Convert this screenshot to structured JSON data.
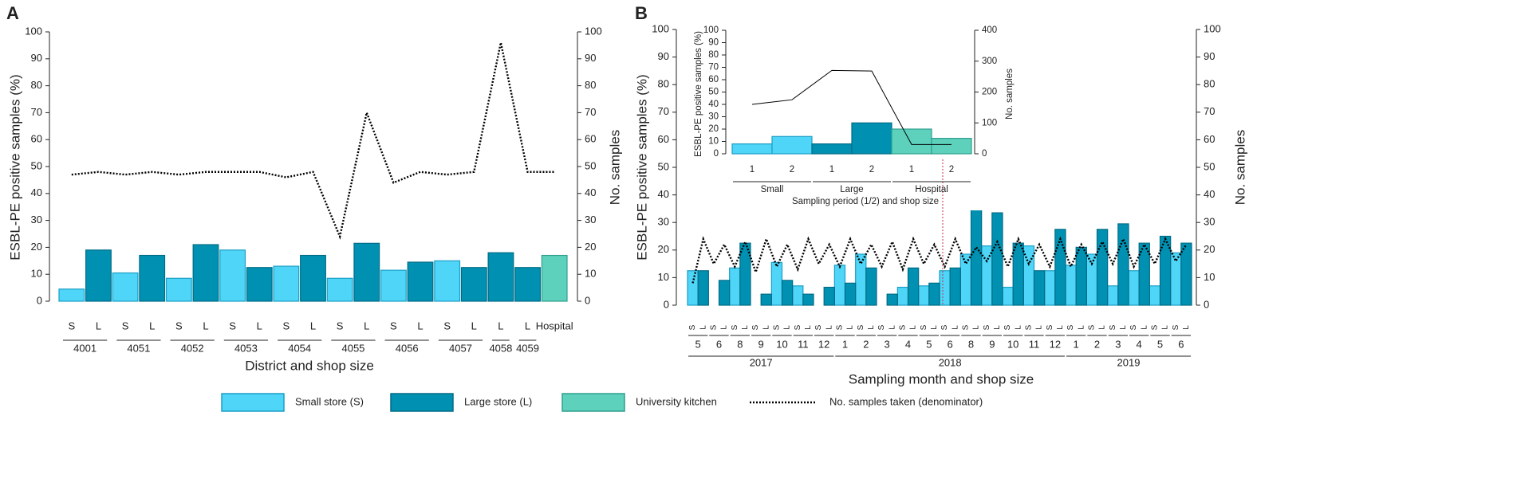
{
  "chart_data": [
    {
      "type": "bar_line",
      "panel": "A",
      "ylabel": "ESBL-PE positive samples (%)",
      "y2label": "No. samples",
      "xlabel": "District and shop size",
      "categories": [
        "S",
        "L",
        "S",
        "L",
        "S",
        "L",
        "S",
        "L",
        "S",
        "L",
        "S",
        "L",
        "S",
        "L",
        "S",
        "L",
        "L",
        "L",
        "Hospital"
      ],
      "groups": [
        {
          "label": "4001",
          "n": 2
        },
        {
          "label": "4051",
          "n": 2
        },
        {
          "label": "4052",
          "n": 2
        },
        {
          "label": "4053",
          "n": 2
        },
        {
          "label": "4054",
          "n": 2
        },
        {
          "label": "4055",
          "n": 2
        },
        {
          "label": "4056",
          "n": 2
        },
        {
          "label": "4057",
          "n": 2
        },
        {
          "label": "4058",
          "n": 1
        },
        {
          "label": "4059",
          "n": 1
        }
      ],
      "ylim": [
        0,
        100
      ],
      "yticks": [
        0,
        10,
        20,
        30,
        40,
        50,
        60,
        70,
        80,
        90,
        100
      ],
      "y2lim": [
        0,
        100
      ],
      "y2ticks": [
        0,
        10,
        20,
        30,
        40,
        50,
        60,
        70,
        80,
        90,
        100
      ],
      "series": [
        {
          "name": "Small store (S)",
          "color": "#4fd5f7",
          "kind": "bar",
          "values": [
            4.5,
            null,
            10.5,
            null,
            8.5,
            null,
            19,
            null,
            13,
            null,
            8.5,
            null,
            11.5,
            null,
            15,
            null,
            null,
            null,
            null
          ]
        },
        {
          "name": "Large store (L)",
          "color": "#0091b2",
          "kind": "bar",
          "values": [
            null,
            19,
            null,
            17,
            null,
            21,
            null,
            12.5,
            null,
            17,
            null,
            21.5,
            null,
            14.5,
            null,
            12.5,
            18,
            12.5,
            null
          ]
        },
        {
          "name": "University kitchen",
          "color": "#5ed1bd",
          "kind": "bar",
          "values": [
            null,
            null,
            null,
            null,
            null,
            null,
            null,
            null,
            null,
            null,
            null,
            null,
            null,
            null,
            null,
            null,
            null,
            null,
            17
          ]
        },
        {
          "name": "No. samples taken (denominator)",
          "color": "#000000",
          "kind": "line",
          "axis": "y2",
          "values": [
            47,
            48,
            47,
            48,
            47,
            48,
            48,
            48,
            46,
            48,
            24,
            70,
            44,
            48,
            47,
            48,
            96,
            48,
            48
          ]
        }
      ]
    },
    {
      "type": "bar_line",
      "panel": "B",
      "ylabel": "ESBL-PE positive samples (%)",
      "y2label": "No. samples",
      "xlabel": "Sampling month and shop size",
      "categories": [
        "S",
        "L",
        "S",
        "L",
        "S",
        "L",
        "S",
        "L",
        "S",
        "L",
        "S",
        "L",
        "S",
        "L",
        "S",
        "L",
        "S",
        "L",
        "S",
        "L",
        "S",
        "L",
        "S",
        "L",
        "S",
        "L",
        "S",
        "L",
        "S",
        "L",
        "S",
        "L",
        "S",
        "L",
        "S",
        "L",
        "S",
        "L",
        "S",
        "L",
        "S",
        "L",
        "S",
        "L",
        "S",
        "L",
        "S",
        "L"
      ],
      "groups": [
        {
          "label": "5",
          "n": 2
        },
        {
          "label": "6",
          "n": 2
        },
        {
          "label": "8",
          "n": 2
        },
        {
          "label": "9",
          "n": 2
        },
        {
          "label": "10",
          "n": 2
        },
        {
          "label": "11",
          "n": 2
        },
        {
          "label": "12",
          "n": 2
        },
        {
          "label": "1",
          "n": 2
        },
        {
          "label": "2",
          "n": 2
        },
        {
          "label": "3",
          "n": 2
        },
        {
          "label": "4",
          "n": 2
        },
        {
          "label": "5",
          "n": 2
        },
        {
          "label": "6",
          "n": 2
        },
        {
          "label": "8",
          "n": 2
        },
        {
          "label": "9",
          "n": 2
        },
        {
          "label": "10",
          "n": 2
        },
        {
          "label": "11",
          "n": 2
        },
        {
          "label": "12",
          "n": 2
        },
        {
          "label": "1",
          "n": 2
        },
        {
          "label": "2",
          "n": 2
        },
        {
          "label": "3",
          "n": 2
        },
        {
          "label": "4",
          "n": 2
        },
        {
          "label": "5",
          "n": 2
        },
        {
          "label": "6",
          "n": 2
        }
      ],
      "groups2": [
        {
          "label": "2017",
          "n": 14
        },
        {
          "label": "2018",
          "n": 22
        },
        {
          "label": "2019",
          "n": 12
        }
      ],
      "ylim": [
        0,
        100
      ],
      "yticks": [
        0,
        10,
        20,
        30,
        40,
        50,
        60,
        70,
        80,
        90,
        100
      ],
      "y2lim": [
        0,
        100
      ],
      "y2ticks": [
        0,
        10,
        20,
        30,
        40,
        50,
        60,
        70,
        80,
        90,
        100
      ],
      "series": [
        {
          "color": "#4fd5f7",
          "kind": "bar",
          "values": [
            12.5,
            null,
            0,
            null,
            13.5,
            null,
            0,
            null,
            15.5,
            null,
            7,
            null,
            0,
            null,
            14.5,
            null,
            18.5,
            null,
            0,
            null,
            6.5,
            null,
            7,
            null,
            12.5,
            null,
            18.5,
            null,
            21.5,
            null,
            6.5,
            null,
            21.5,
            null,
            12.5,
            null,
            14.5,
            null,
            18.5,
            null,
            7,
            null,
            12.5,
            null,
            7,
            null,
            19,
            null
          ]
        },
        {
          "color": "#0091b2",
          "kind": "bar",
          "values": [
            null,
            12.5,
            null,
            9,
            null,
            22.5,
            null,
            4,
            null,
            9,
            null,
            4,
            null,
            6.5,
            null,
            8,
            null,
            13.5,
            null,
            4,
            null,
            13.5,
            null,
            8,
            null,
            13.5,
            null,
            36.5,
            null,
            33.5,
            null,
            22.5,
            null,
            12.5,
            null,
            27.5,
            null,
            21,
            null,
            27.5,
            null,
            29.5,
            null,
            22.5,
            null,
            25,
            null,
            22.5
          ]
        },
        {
          "color": "#000000",
          "kind": "line",
          "axis": "y2",
          "values": [
            8,
            24,
            15,
            22,
            14,
            23,
            12,
            24,
            14,
            22,
            13,
            24,
            15,
            22,
            14,
            24,
            15,
            22,
            14,
            23,
            13,
            24,
            15,
            22,
            14,
            24,
            15,
            21,
            16,
            23,
            14,
            24,
            15,
            22,
            14,
            24,
            14,
            22,
            15,
            23,
            15,
            24,
            14,
            22,
            15,
            24,
            16,
            22
          ]
        }
      ]
    },
    {
      "type": "bar_line",
      "ylabel": "ESBL-PE positive samples (%)",
      "y2label": "No. samples",
      "xlabel": "Sampling period (1/2) and shop size",
      "categories": [
        "1",
        "2",
        "1",
        "2",
        "1",
        "2"
      ],
      "groups": [
        {
          "label": "Small",
          "n": 2
        },
        {
          "label": "Large",
          "n": 2
        },
        {
          "label": "Hospital",
          "n": 2
        }
      ],
      "ylim": [
        0,
        100
      ],
      "yticks": [
        0,
        10,
        20,
        30,
        40,
        50,
        60,
        70,
        80,
        90,
        100
      ],
      "y2lim": [
        0,
        400
      ],
      "y2ticks": [
        0,
        100,
        200,
        300,
        400
      ],
      "series": [
        {
          "color": "#4fd5f7",
          "kind": "bar",
          "values": [
            8,
            14,
            null,
            null,
            null,
            null
          ]
        },
        {
          "color": "#0091b2",
          "kind": "bar",
          "values": [
            null,
            null,
            8,
            25,
            null,
            null
          ]
        },
        {
          "color": "#5ed1bd",
          "kind": "bar",
          "values": [
            null,
            null,
            null,
            null,
            20,
            12.5
          ]
        },
        {
          "color": "#000000",
          "kind": "line",
          "axis": "y2",
          "values": [
            160,
            175,
            270,
            268,
            30,
            30
          ]
        }
      ]
    }
  ]
}
